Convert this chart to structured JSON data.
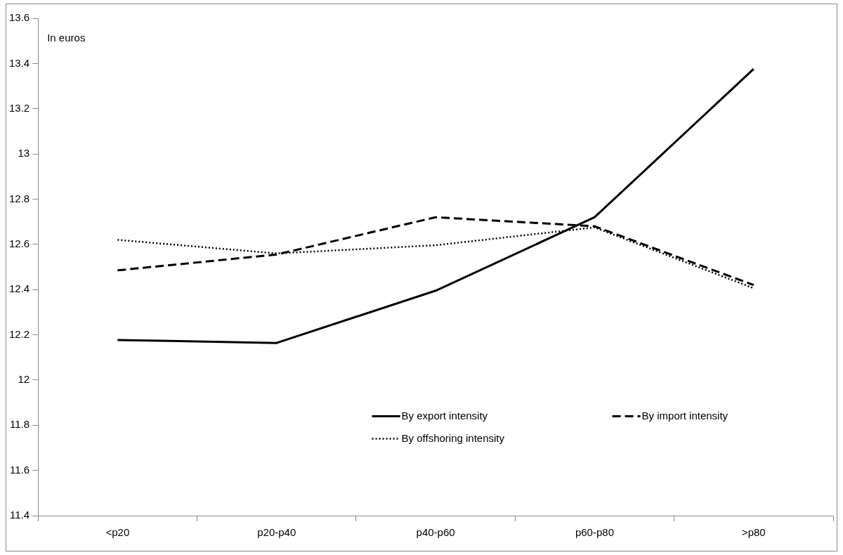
{
  "chart_data": {
    "type": "line",
    "ylabel": "In euros",
    "categories": [
      "<p20",
      "p20-p40",
      "p40-p60",
      "p60-p80",
      ">p80"
    ],
    "series": [
      {
        "name": "By export intensity",
        "color": "#000000",
        "line_style": "solid",
        "values": [
          12.177,
          12.164,
          12.395,
          12.72,
          13.376
        ]
      },
      {
        "name": "By import intensity",
        "color": "#000000",
        "line_style": "dashed",
        "values": [
          12.485,
          12.555,
          12.72,
          12.68,
          12.42
        ]
      },
      {
        "name": "By offshoring intensity",
        "color": "#000000",
        "line_style": "dotted",
        "values": [
          12.62,
          12.56,
          12.596,
          12.675,
          12.406
        ]
      }
    ],
    "ylim": [
      11.4,
      13.6
    ],
    "yticks": [
      11.4,
      11.6,
      11.8,
      12,
      12.2,
      12.4,
      12.6,
      12.8,
      13,
      13.2,
      13.4,
      13.6
    ],
    "grid": false,
    "legend": "bottom",
    "marker": "none"
  }
}
